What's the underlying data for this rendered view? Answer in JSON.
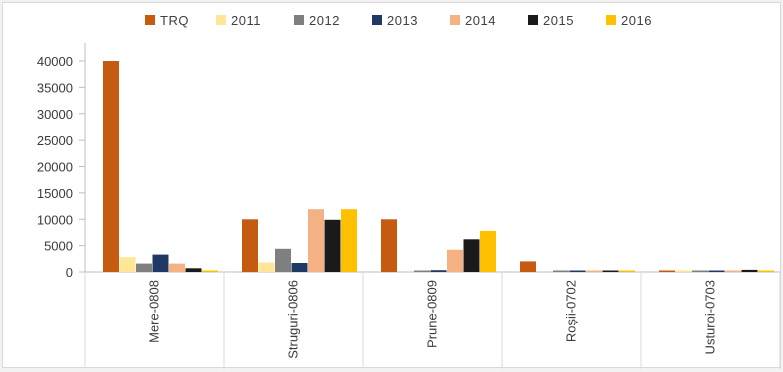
{
  "chart_data": {
    "type": "bar",
    "title": "",
    "xlabel": "",
    "ylabel": "",
    "ylim": [
      0,
      40000
    ],
    "yticks": [
      0,
      5000,
      10000,
      15000,
      20000,
      25000,
      30000,
      35000,
      40000
    ],
    "grid": false,
    "legend_position": "top",
    "categories": [
      "Mere-0808",
      "Struguri-0806",
      "Prune-0809",
      "Roșii-0702",
      "Usturoi-0703"
    ],
    "series": [
      {
        "name": "TRQ",
        "color": "#c55a11",
        "values": [
          40000,
          10000,
          10000,
          2000,
          200
        ]
      },
      {
        "name": "2011",
        "color": "#ffe699",
        "values": [
          2800,
          1800,
          0,
          0,
          150
        ]
      },
      {
        "name": "2012",
        "color": "#7f7f7f",
        "values": [
          1600,
          4400,
          150,
          100,
          100
        ]
      },
      {
        "name": "2013",
        "color": "#203864",
        "values": [
          3300,
          1700,
          350,
          100,
          100
        ]
      },
      {
        "name": "2014",
        "color": "#f4b183",
        "values": [
          1600,
          11900,
          4200,
          100,
          100
        ]
      },
      {
        "name": "2015",
        "color": "#1a1a1a",
        "values": [
          700,
          9900,
          6200,
          50,
          400
        ]
      },
      {
        "name": "2016",
        "color": "#ffc000",
        "values": [
          100,
          11900,
          7800,
          50,
          50
        ]
      }
    ]
  }
}
